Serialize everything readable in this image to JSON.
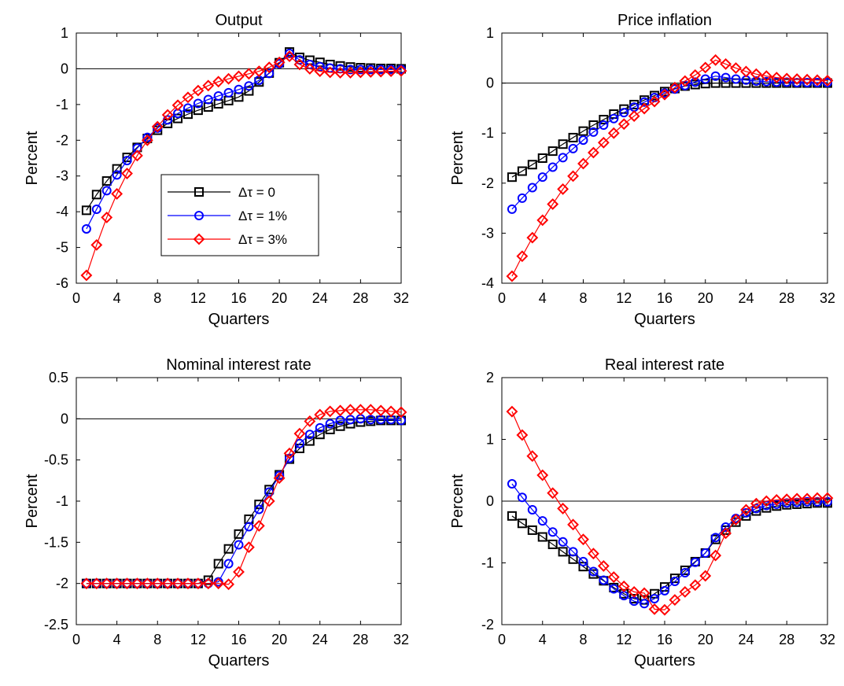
{
  "chart_data": [
    {
      "type": "line",
      "title": "Output",
      "xlabel": "Quarters",
      "ylabel": "Percent",
      "xlim": [
        0,
        32
      ],
      "ylim": [
        -6,
        1
      ],
      "xticks": [
        0,
        4,
        8,
        12,
        16,
        20,
        24,
        28,
        32
      ],
      "yticks": [
        -6,
        -5,
        -4,
        -3,
        -2,
        -1,
        0,
        1
      ],
      "ytick_labels": [
        "-6",
        "-5",
        "-4",
        "-3",
        "-2",
        "-1",
        "0",
        "1"
      ],
      "zero_line": true,
      "grid": false,
      "legend": {
        "placement": "center-left",
        "entries": [
          {
            "series": 0,
            "label": "Δτ = 0"
          },
          {
            "series": 1,
            "label": "Δτ = 1%"
          },
          {
            "series": 2,
            "label": "Δτ = 3%"
          }
        ]
      },
      "x": [
        1,
        2,
        3,
        4,
        5,
        6,
        7,
        8,
        9,
        10,
        11,
        12,
        13,
        14,
        15,
        16,
        17,
        18,
        19,
        20,
        21,
        22,
        23,
        24,
        25,
        26,
        27,
        28,
        29,
        30,
        31,
        32
      ],
      "series": [
        {
          "name": "Δτ = 0",
          "color": "#000000",
          "marker": "square",
          "values": [
            -3.96,
            -3.52,
            -3.14,
            -2.8,
            -2.48,
            -2.2,
            -1.95,
            -1.72,
            -1.53,
            -1.39,
            -1.27,
            -1.16,
            -1.07,
            -0.98,
            -0.89,
            -0.79,
            -0.62,
            -0.37,
            -0.12,
            0.17,
            0.47,
            0.32,
            0.24,
            0.18,
            0.12,
            0.08,
            0.05,
            0.03,
            0.02,
            0.01,
            0.01,
            0.0
          ]
        },
        {
          "name": "Δτ = 1%",
          "color": "#0000ff",
          "marker": "circle",
          "values": [
            -4.48,
            -3.93,
            -3.41,
            -2.97,
            -2.57,
            -2.22,
            -1.92,
            -1.66,
            -1.43,
            -1.25,
            -1.1,
            -0.97,
            -0.86,
            -0.76,
            -0.67,
            -0.58,
            -0.48,
            -0.32,
            -0.13,
            0.14,
            0.43,
            0.25,
            0.12,
            0.06,
            0.02,
            0.0,
            -0.02,
            -0.02,
            -0.02,
            -0.02,
            -0.02,
            -0.02
          ]
        },
        {
          "name": "Δτ = 3%",
          "color": "#ff0000",
          "marker": "diamond",
          "values": [
            -5.78,
            -4.93,
            -4.16,
            -3.5,
            -2.93,
            -2.43,
            -2.0,
            -1.62,
            -1.29,
            -1.02,
            -0.8,
            -0.61,
            -0.47,
            -0.36,
            -0.28,
            -0.21,
            -0.14,
            -0.07,
            0.04,
            0.18,
            0.35,
            0.12,
            0.0,
            -0.07,
            -0.1,
            -0.11,
            -0.11,
            -0.1,
            -0.09,
            -0.08,
            -0.07,
            -0.06
          ]
        }
      ]
    },
    {
      "type": "line",
      "title": "Price inflation",
      "xlabel": "Quarters",
      "ylabel": "Percent",
      "xlim": [
        0,
        32
      ],
      "ylim": [
        -4,
        1
      ],
      "xticks": [
        0,
        4,
        8,
        12,
        16,
        20,
        24,
        28,
        32
      ],
      "yticks": [
        -4,
        -3,
        -2,
        -1,
        0,
        1
      ],
      "ytick_labels": [
        "-4",
        "-3",
        "-2",
        "-1",
        "0",
        "1"
      ],
      "zero_line": true,
      "grid": false,
      "x": [
        1,
        2,
        3,
        4,
        5,
        6,
        7,
        8,
        9,
        10,
        11,
        12,
        13,
        14,
        15,
        16,
        17,
        18,
        19,
        20,
        21,
        22,
        23,
        24,
        25,
        26,
        27,
        28,
        29,
        30,
        31,
        32
      ],
      "series": [
        {
          "name": "Δτ = 0",
          "color": "#000000",
          "marker": "square",
          "values": [
            -1.88,
            -1.76,
            -1.63,
            -1.5,
            -1.36,
            -1.22,
            -1.09,
            -0.96,
            -0.84,
            -0.73,
            -0.62,
            -0.52,
            -0.43,
            -0.34,
            -0.25,
            -0.17,
            -0.11,
            -0.06,
            -0.03,
            -0.01,
            0.0,
            0.0,
            0.0,
            0.0,
            0.0,
            0.0,
            0.0,
            0.0,
            0.0,
            0.0,
            0.0,
            0.0
          ]
        },
        {
          "name": "Δτ = 1%",
          "color": "#0000ff",
          "marker": "circle",
          "values": [
            -2.52,
            -2.3,
            -2.09,
            -1.88,
            -1.68,
            -1.49,
            -1.31,
            -1.14,
            -0.98,
            -0.84,
            -0.71,
            -0.59,
            -0.48,
            -0.38,
            -0.29,
            -0.2,
            -0.12,
            -0.05,
            0.02,
            0.08,
            0.14,
            0.11,
            0.08,
            0.06,
            0.04,
            0.03,
            0.02,
            0.02,
            0.01,
            0.01,
            0.01,
            0.01
          ]
        },
        {
          "name": "Δτ = 3%",
          "color": "#ff0000",
          "marker": "diamond",
          "values": [
            -3.86,
            -3.46,
            -3.09,
            -2.74,
            -2.42,
            -2.12,
            -1.86,
            -1.61,
            -1.39,
            -1.19,
            -1.0,
            -0.82,
            -0.66,
            -0.51,
            -0.37,
            -0.23,
            -0.09,
            0.04,
            0.16,
            0.31,
            0.46,
            0.38,
            0.3,
            0.23,
            0.18,
            0.14,
            0.11,
            0.09,
            0.08,
            0.07,
            0.06,
            0.05
          ]
        }
      ]
    },
    {
      "type": "line",
      "title": "Nominal interest rate",
      "xlabel": "Quarters",
      "ylabel": "Percent",
      "xlim": [
        0,
        32
      ],
      "ylim": [
        -2.5,
        0.5
      ],
      "xticks": [
        0,
        4,
        8,
        12,
        16,
        20,
        24,
        28,
        32
      ],
      "yticks": [
        -2.5,
        -2,
        -1.5,
        -1,
        -0.5,
        0,
        0.5
      ],
      "ytick_labels": [
        "-2.5",
        "-2",
        "-1.5",
        "-1",
        "-0.5",
        "0",
        "0.5"
      ],
      "zero_line": true,
      "grid": false,
      "x": [
        1,
        2,
        3,
        4,
        5,
        6,
        7,
        8,
        9,
        10,
        11,
        12,
        13,
        14,
        15,
        16,
        17,
        18,
        19,
        20,
        21,
        22,
        23,
        24,
        25,
        26,
        27,
        28,
        29,
        30,
        31,
        32
      ],
      "series": [
        {
          "name": "Δτ = 0",
          "color": "#000000",
          "marker": "square",
          "values": [
            -2.0,
            -2.0,
            -2.0,
            -2.0,
            -2.0,
            -2.0,
            -2.0,
            -2.0,
            -2.0,
            -2.0,
            -2.0,
            -2.0,
            -1.96,
            -1.76,
            -1.58,
            -1.4,
            -1.22,
            -1.04,
            -0.86,
            -0.68,
            -0.49,
            -0.36,
            -0.27,
            -0.19,
            -0.13,
            -0.09,
            -0.06,
            -0.04,
            -0.03,
            -0.02,
            -0.02,
            -0.02
          ]
        },
        {
          "name": "Δτ = 1%",
          "color": "#0000ff",
          "marker": "circle",
          "values": [
            -2.0,
            -2.0,
            -2.0,
            -2.0,
            -2.0,
            -2.0,
            -2.0,
            -2.0,
            -2.0,
            -2.0,
            -2.0,
            -2.0,
            -2.0,
            -1.98,
            -1.76,
            -1.53,
            -1.31,
            -1.1,
            -0.89,
            -0.69,
            -0.48,
            -0.3,
            -0.19,
            -0.11,
            -0.06,
            -0.02,
            -0.01,
            0.0,
            -0.01,
            -0.01,
            -0.01,
            -0.02
          ]
        },
        {
          "name": "Δτ = 3%",
          "color": "#ff0000",
          "marker": "diamond",
          "values": [
            -2.0,
            -2.0,
            -2.0,
            -2.0,
            -2.0,
            -2.0,
            -2.0,
            -2.0,
            -2.0,
            -2.0,
            -2.0,
            -2.0,
            -2.0,
            -2.0,
            -2.01,
            -1.86,
            -1.56,
            -1.3,
            -1.0,
            -0.72,
            -0.42,
            -0.18,
            -0.03,
            0.05,
            0.09,
            0.1,
            0.11,
            0.11,
            0.11,
            0.1,
            0.09,
            0.08
          ]
        }
      ]
    },
    {
      "type": "line",
      "title": "Real interest rate",
      "xlabel": "Quarters",
      "ylabel": "Percent",
      "xlim": [
        0,
        32
      ],
      "ylim": [
        -2,
        2
      ],
      "xticks": [
        0,
        4,
        8,
        12,
        16,
        20,
        24,
        28,
        32
      ],
      "yticks": [
        -2,
        -1,
        0,
        1,
        2
      ],
      "ytick_labels": [
        "-2",
        "-1",
        "0",
        "1",
        "2"
      ],
      "zero_line": true,
      "grid": false,
      "x": [
        1,
        2,
        3,
        4,
        5,
        6,
        7,
        8,
        9,
        10,
        11,
        12,
        13,
        14,
        15,
        16,
        17,
        18,
        19,
        20,
        21,
        22,
        23,
        24,
        25,
        26,
        27,
        28,
        29,
        30,
        31,
        32
      ],
      "series": [
        {
          "name": "Δτ = 0",
          "color": "#000000",
          "marker": "square",
          "values": [
            -0.24,
            -0.36,
            -0.47,
            -0.58,
            -0.7,
            -0.82,
            -0.94,
            -1.06,
            -1.18,
            -1.29,
            -1.4,
            -1.5,
            -1.58,
            -1.6,
            -1.5,
            -1.39,
            -1.25,
            -1.12,
            -0.98,
            -0.84,
            -0.62,
            -0.47,
            -0.34,
            -0.24,
            -0.16,
            -0.11,
            -0.08,
            -0.06,
            -0.05,
            -0.04,
            -0.03,
            -0.03
          ]
        },
        {
          "name": "Δτ = 1%",
          "color": "#0000ff",
          "marker": "circle",
          "values": [
            0.28,
            0.06,
            -0.14,
            -0.32,
            -0.5,
            -0.66,
            -0.82,
            -0.98,
            -1.14,
            -1.28,
            -1.42,
            -1.53,
            -1.62,
            -1.66,
            -1.58,
            -1.45,
            -1.3,
            -1.16,
            -0.99,
            -0.84,
            -0.59,
            -0.42,
            -0.28,
            -0.19,
            -0.12,
            -0.07,
            -0.05,
            -0.03,
            -0.02,
            -0.01,
            -0.01,
            -0.01
          ]
        },
        {
          "name": "Δτ = 3%",
          "color": "#ff0000",
          "marker": "diamond",
          "values": [
            1.45,
            1.07,
            0.73,
            0.42,
            0.13,
            -0.12,
            -0.38,
            -0.62,
            -0.85,
            -1.05,
            -1.23,
            -1.38,
            -1.47,
            -1.49,
            -1.75,
            -1.76,
            -1.6,
            -1.47,
            -1.36,
            -1.21,
            -0.88,
            -0.52,
            -0.3,
            -0.14,
            -0.04,
            0.0,
            0.02,
            0.03,
            0.04,
            0.04,
            0.05,
            0.05
          ]
        }
      ]
    }
  ]
}
